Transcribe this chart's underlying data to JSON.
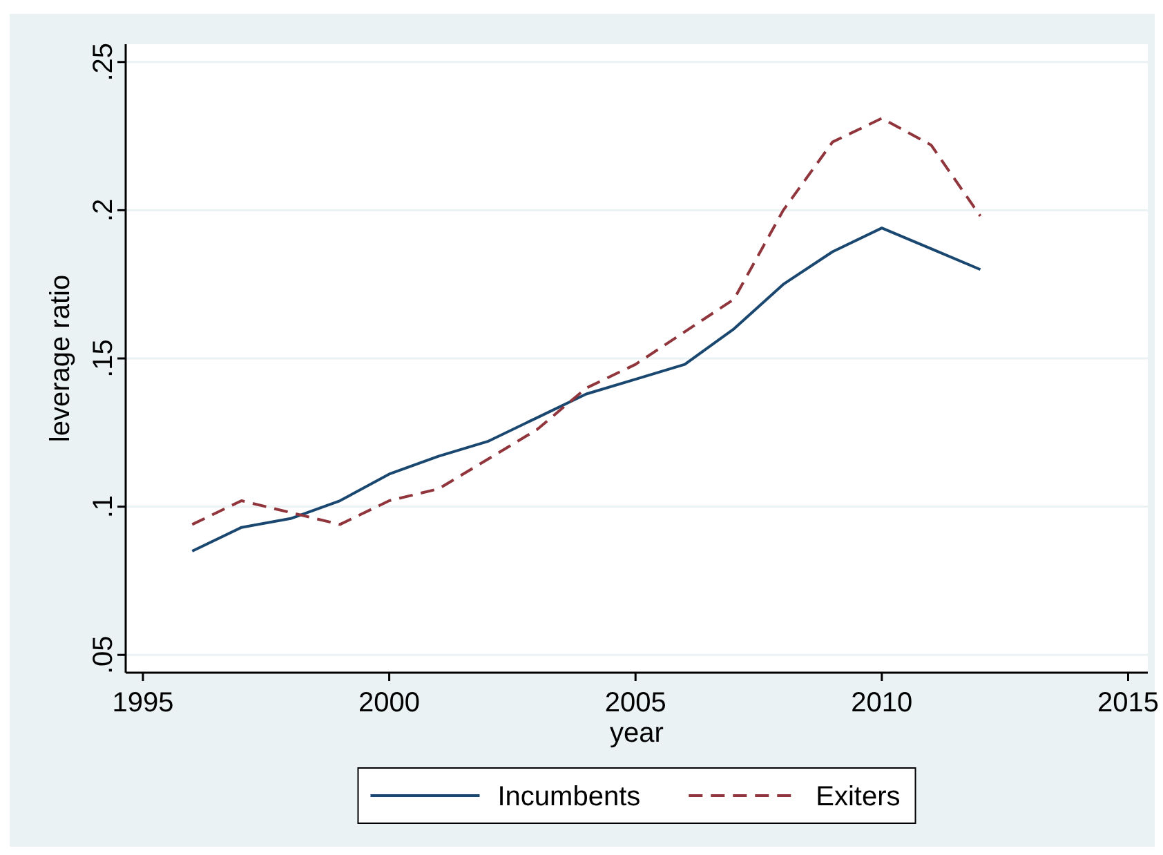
{
  "chart_data": {
    "type": "line",
    "xlabel": "year",
    "ylabel": "leverage ratio",
    "x": [
      1996,
      1997,
      1998,
      1999,
      2000,
      2001,
      2002,
      2003,
      2004,
      2005,
      2006,
      2007,
      2008,
      2009,
      2010,
      2011,
      2012
    ],
    "series": [
      {
        "name": "Incumbents",
        "color": "#1a476f",
        "line_style": "solid",
        "values": [
          0.085,
          0.093,
          0.096,
          0.102,
          0.111,
          0.117,
          0.122,
          0.13,
          0.138,
          0.143,
          0.148,
          0.16,
          0.175,
          0.186,
          0.194,
          0.187,
          0.18
        ]
      },
      {
        "name": "Exiters",
        "color": "#90353b",
        "line_style": "dashed",
        "values": [
          0.094,
          0.102,
          0.098,
          0.094,
          0.102,
          0.106,
          0.116,
          0.126,
          0.14,
          0.148,
          0.159,
          0.17,
          0.2,
          0.223,
          0.231,
          0.222,
          0.198
        ]
      }
    ],
    "xlim": [
      1994.65,
      2015.4
    ],
    "xticks": [
      1995,
      2000,
      2005,
      2010,
      2015
    ],
    "ylim": [
      0.044,
      0.256
    ],
    "yticks": [
      {
        "value": 0.05,
        "label": ".05"
      },
      {
        "value": 0.1,
        "label": ".1"
      },
      {
        "value": 0.15,
        "label": ".15"
      },
      {
        "value": 0.2,
        "label": ".2"
      },
      {
        "value": 0.25,
        "label": ".25"
      }
    ],
    "grid": "y",
    "legend": "bottom"
  }
}
